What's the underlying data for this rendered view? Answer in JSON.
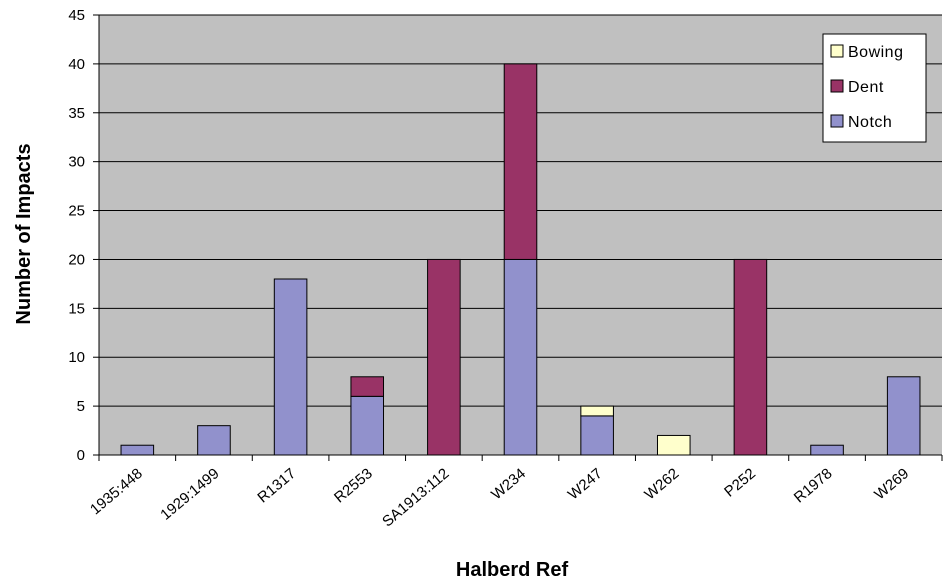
{
  "chart_data": {
    "type": "bar",
    "stacked": true,
    "title": "",
    "xlabel": "Halberd Ref",
    "ylabel": "Number of Impacts",
    "ylim": [
      0,
      45
    ],
    "yticks": [
      0,
      5,
      10,
      15,
      20,
      25,
      30,
      35,
      40,
      45
    ],
    "grid": "horizontal",
    "legend": "top-right",
    "categories": [
      "1935:448",
      "1929:1499",
      "R1317",
      "R2553",
      "SA1913:112",
      "W234",
      "W247",
      "W262",
      "P252",
      "R1978",
      "W269"
    ],
    "series": [
      {
        "name": "Notch",
        "color": "#9191cc",
        "values": [
          1,
          3,
          18,
          6,
          0,
          20,
          4,
          0,
          0,
          1,
          8
        ]
      },
      {
        "name": "Dent",
        "color": "#993366",
        "values": [
          0,
          0,
          0,
          2,
          20,
          20,
          0,
          0,
          20,
          0,
          0
        ]
      },
      {
        "name": "Bowing",
        "color": "#ffffcc",
        "values": [
          0,
          0,
          0,
          0,
          0,
          0,
          1,
          2,
          0,
          0,
          0
        ]
      }
    ],
    "legend_order": [
      "Bowing",
      "Dent",
      "Notch"
    ],
    "plot_background": "#c0c0c0",
    "gridline_color": "#000000"
  }
}
